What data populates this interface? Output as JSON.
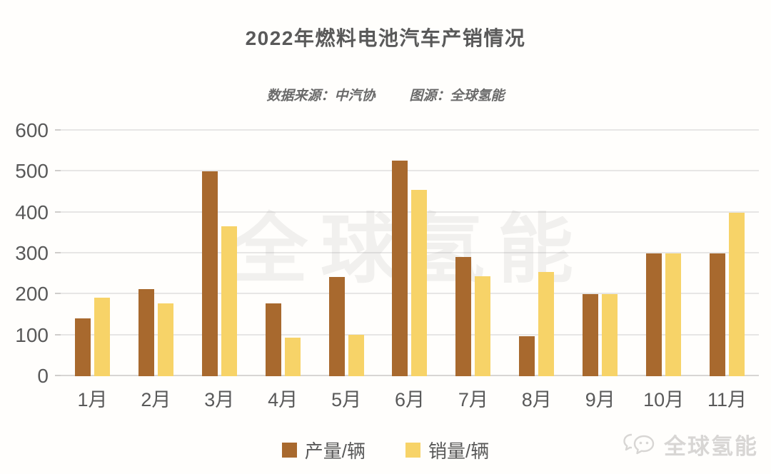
{
  "title": "2022年燃料电池汽车产销情况",
  "subtitle": {
    "data_source": "数据来源：中汽协",
    "image_source": "图源：全球氢能"
  },
  "watermark": "全球氢能",
  "logo": {
    "text": "全球氢能",
    "icon": "wechat-bubbles-icon"
  },
  "colors": {
    "production": "#A8692E",
    "sales": "#F7D368",
    "text": "#595959",
    "gridline": "#E7E6E5",
    "watermark_gray": "#EFEEEF",
    "logo_gray": "#D8D6D4"
  },
  "chart_data": {
    "type": "bar",
    "title": "2022年燃料电池汽车产销情况",
    "categories": [
      "1月",
      "2月",
      "3月",
      "4月",
      "5月",
      "6月",
      "7月",
      "8月",
      "9月",
      "10月",
      "11月"
    ],
    "series": [
      {
        "name": "产量/辆",
        "color": "#A8692E",
        "values": [
          142,
          213,
          500,
          178,
          242,
          527,
          292,
          97,
          200,
          300,
          300
        ]
      },
      {
        "name": "销量/辆",
        "color": "#F7D368",
        "values": [
          192,
          178,
          367,
          94,
          102,
          455,
          245,
          255,
          200,
          300,
          400
        ]
      }
    ],
    "xlabel": "",
    "ylabel": "",
    "ylim": [
      0,
      600
    ],
    "yticks": [
      0,
      100,
      200,
      300,
      400,
      500,
      600
    ],
    "grid": true,
    "legend_position": "bottom"
  }
}
